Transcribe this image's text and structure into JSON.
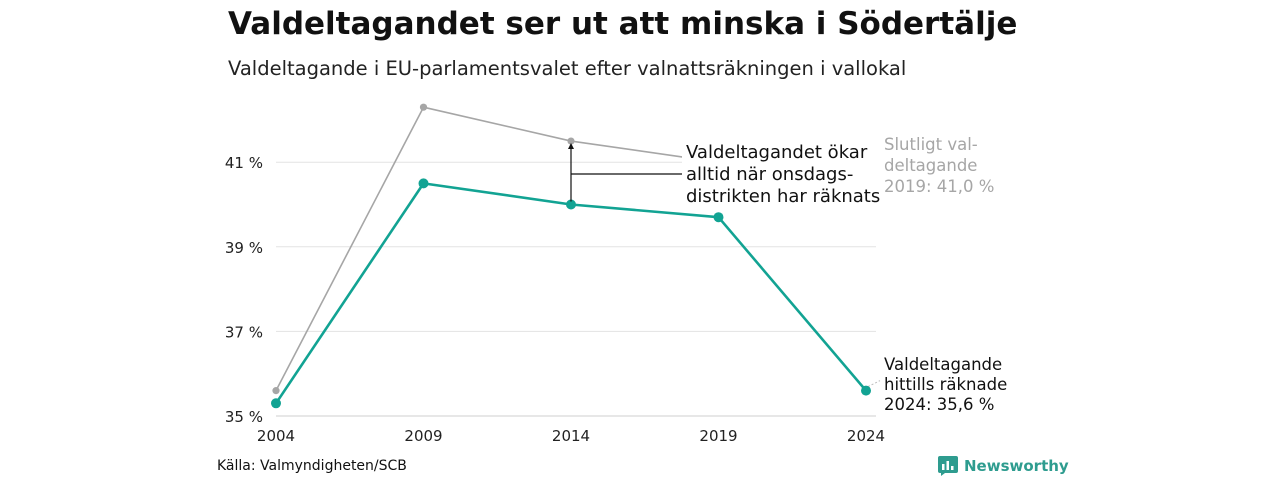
{
  "header": {
    "title": "Valdeltagandet ser ut att minska i Södertälje",
    "subtitle": "Valdeltagande i EU-parlamentsvalet efter valnattsräkningen i vallokal"
  },
  "footer": {
    "source": "Källa: Valmyndigheten/SCB",
    "brand": "Newsworthy"
  },
  "colors": {
    "preliminary": "#12a393",
    "final": "#a6a6a6",
    "brand": "#2e9c8f"
  },
  "annotations": {
    "final_label": [
      "Slutligt val-",
      "deltagande",
      "2019: 41,0 %"
    ],
    "preliminary_label": [
      "Valdeltagande",
      "hittills räknade",
      "2024: 35,6 %"
    ],
    "note": [
      "Valdeltagandet ökar",
      "alltid när onsdags-",
      "distrikten har räknats"
    ]
  },
  "chart_data": {
    "type": "line",
    "title": "Valdeltagandet ser ut att minska i Södertälje",
    "subtitle": "Valdeltagande i EU-parlamentsvalet efter valnattsräkningen i vallokal",
    "categories": [
      "2004",
      "2009",
      "2014",
      "2019",
      "2024"
    ],
    "yticks": [
      "35 %",
      "37 %",
      "39 %",
      "41 %"
    ],
    "ylim": [
      35,
      42.6
    ],
    "grid": true,
    "series": [
      {
        "key": "final",
        "values": [
          35.6,
          42.3,
          41.5,
          41.0,
          null
        ]
      },
      {
        "key": "preliminary",
        "values": [
          35.3,
          40.5,
          40.0,
          39.7,
          35.6
        ]
      }
    ]
  }
}
